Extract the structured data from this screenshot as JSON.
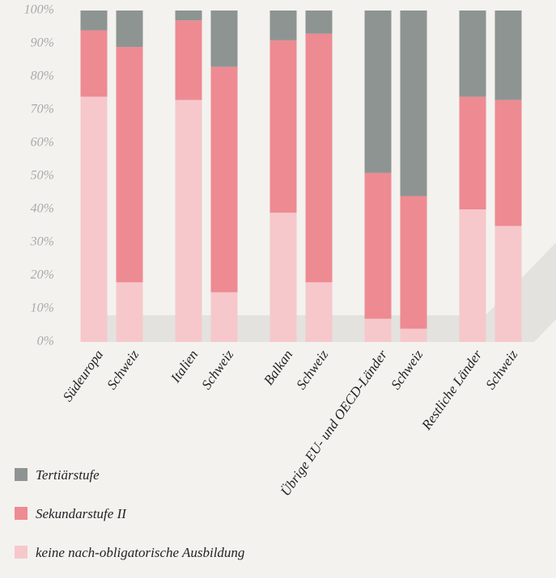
{
  "chart_data": {
    "type": "stacked_bar",
    "categories": [
      "Südeuropa",
      "Schweiz",
      "Italien",
      "Schweiz",
      "Balkan",
      "Schweiz",
      "Übrige EU- und OECD-Länder",
      "Schweiz",
      "Restliche Länder",
      "Schweiz"
    ],
    "series": [
      {
        "name": "keine nach-obligatorische Ausbildung",
        "color": "#f6c8cb",
        "values": [
          74,
          18,
          73,
          15,
          39,
          18,
          7,
          4,
          40,
          35
        ]
      },
      {
        "name": "Sekundarstufe II",
        "color": "#ee8a92",
        "values": [
          20,
          71,
          24,
          68,
          52,
          75,
          44,
          40,
          34,
          38
        ]
      },
      {
        "name": "Tertiärstufe",
        "color": "#8e9492",
        "values": [
          6,
          11,
          3,
          17,
          9,
          7,
          49,
          56,
          26,
          27
        ]
      }
    ],
    "ylim": [
      0,
      100
    ],
    "yticks": [
      {
        "value": 0,
        "label": "0%"
      },
      {
        "value": 10,
        "label": "10%"
      },
      {
        "value": 20,
        "label": "20%"
      },
      {
        "value": 30,
        "label": "30%"
      },
      {
        "value": 40,
        "label": "40%"
      },
      {
        "value": 50,
        "label": "50%"
      },
      {
        "value": 60,
        "label": "60%"
      },
      {
        "value": 70,
        "label": "70%"
      },
      {
        "value": 80,
        "label": "80%"
      },
      {
        "value": 90,
        "label": "90%"
      },
      {
        "value": 100,
        "label": "100%"
      }
    ],
    "legend": "bottom-left"
  }
}
